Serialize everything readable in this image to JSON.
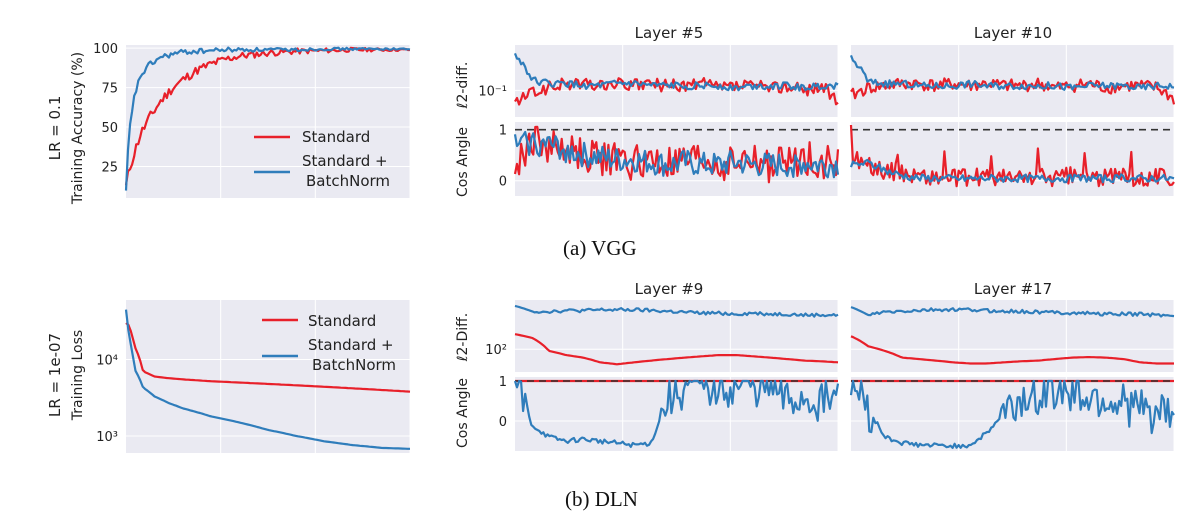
{
  "figure": {
    "caption_a": "(a) VGG",
    "caption_b": "(b) DLN"
  },
  "colors": {
    "standard": "#e8202a",
    "batchnorm": "#2f7dbb",
    "panel_bg": "#eaeaf2",
    "grid": "#ffffff",
    "reference_line": "#333333"
  },
  "chart_data": [
    {
      "id": "vgg-accuracy",
      "type": "line",
      "row_label": "LR = 0.1",
      "ylabel": "Training Accuracy (%)",
      "yscale": "linear",
      "ylim": [
        5,
        102
      ],
      "yticks": [
        25,
        50,
        75,
        100
      ],
      "ytick_labels": [
        "25",
        "50",
        "75",
        "100"
      ],
      "grid": true,
      "legend": [
        "Standard",
        "Standard +",
        "BatchNorm"
      ],
      "legend_position": "lower-right",
      "x": [
        0,
        0.01,
        0.03,
        0.05,
        0.08,
        0.12,
        0.16,
        0.2,
        0.25,
        0.3,
        0.35,
        0.4,
        0.5,
        0.6,
        0.7,
        0.8,
        0.9,
        1.0
      ],
      "series": [
        {
          "name": "Standard",
          "values": [
            12,
            22,
            34,
            45,
            55,
            66,
            74,
            80,
            86,
            90,
            93,
            95,
            97,
            98,
            98.5,
            99,
            99,
            99
          ]
        },
        {
          "name": "Standard + BatchNorm",
          "values": [
            8,
            45,
            70,
            82,
            89,
            94,
            96,
            97.5,
            98,
            98.5,
            99,
            99,
            99,
            99,
            99.5,
            99.5,
            99.5,
            99.5
          ]
        }
      ]
    },
    {
      "id": "vgg-l2-layer5",
      "type": "line",
      "title": "Layer #5",
      "ylabel": "ℓ2-diff.",
      "yscale": "log",
      "ytick_labels": [
        "10⁻¹"
      ],
      "grid": true,
      "series": [
        {
          "name": "Standard",
          "values": [
            0.06,
            0.09,
            0.11,
            0.13,
            0.13,
            0.12,
            0.13,
            0.12,
            0.13,
            0.12,
            0.12,
            0.13,
            0.11,
            0.12,
            0.12,
            0.11,
            0.12,
            0.1,
            0.12,
            0.06
          ]
        },
        {
          "name": "Standard + BatchNorm",
          "values": [
            0.4,
            0.15,
            0.13,
            0.13,
            0.12,
            0.12,
            0.13,
            0.13,
            0.12,
            0.12,
            0.12,
            0.12,
            0.12,
            0.11,
            0.12,
            0.12,
            0.12,
            0.11,
            0.12,
            0.12
          ]
        }
      ]
    },
    {
      "id": "vgg-l2-layer10",
      "type": "line",
      "title": "Layer #10",
      "yscale": "log",
      "grid": true,
      "series": [
        {
          "name": "Standard",
          "values": [
            0.08,
            0.11,
            0.12,
            0.13,
            0.13,
            0.12,
            0.13,
            0.12,
            0.13,
            0.12,
            0.12,
            0.13,
            0.11,
            0.12,
            0.13,
            0.11,
            0.12,
            0.12,
            0.11,
            0.07
          ]
        },
        {
          "name": "Standard + BatchNorm",
          "values": [
            0.35,
            0.14,
            0.13,
            0.13,
            0.12,
            0.12,
            0.12,
            0.13,
            0.12,
            0.12,
            0.12,
            0.12,
            0.12,
            0.11,
            0.12,
            0.12,
            0.12,
            0.11,
            0.12,
            0.12
          ]
        }
      ]
    },
    {
      "id": "vgg-cos-layer5",
      "type": "line",
      "ylabel": "Cos Angle",
      "ylim": [
        -0.3,
        1.15
      ],
      "yticks": [
        0,
        1
      ],
      "ytick_labels": [
        "0",
        "1"
      ],
      "reference_line": 1,
      "grid": true,
      "series": [
        {
          "name": "Standard",
          "values": [
            0.2,
            0.8,
            0.7,
            0.6,
            0.5,
            0.45,
            0.4,
            0.35,
            0.4,
            0.3,
            0.35,
            0.4,
            0.3,
            0.35,
            0.4,
            0.3,
            0.35,
            0.45,
            0.4,
            0.35
          ]
        },
        {
          "name": "Standard + BatchNorm",
          "values": [
            0.7,
            0.75,
            0.7,
            0.6,
            0.5,
            0.45,
            0.4,
            0.4,
            0.35,
            0.3,
            0.35,
            0.3,
            0.3,
            0.35,
            0.3,
            0.3,
            0.3,
            0.35,
            0.3,
            0.3
          ]
        }
      ]
    },
    {
      "id": "vgg-cos-layer10",
      "type": "line",
      "ylim": [
        -0.3,
        1.15
      ],
      "reference_line": 1,
      "grid": true,
      "series": [
        {
          "name": "Standard",
          "values": [
            0.5,
            0.3,
            0.2,
            0.15,
            0.1,
            0.05,
            0.05,
            0.05,
            0.08,
            0.05,
            0.05,
            0.08,
            0.05,
            0.1,
            0.05,
            0.05,
            0.1,
            0.05,
            0.1,
            0.05
          ]
        },
        {
          "name": "Standard + BatchNorm",
          "values": [
            0.3,
            0.35,
            0.2,
            0.1,
            0.05,
            0.05,
            0.04,
            0.04,
            0.05,
            0.04,
            0.05,
            0.04,
            0.05,
            0.04,
            0.05,
            0.04,
            0.05,
            0.04,
            0.05,
            0.04
          ]
        }
      ]
    },
    {
      "id": "dln-loss",
      "type": "line",
      "row_label": "LR = 1e-07",
      "ylabel": "Training Loss",
      "yscale": "log",
      "ylim": [
        600,
        60000
      ],
      "yticks": [
        1000,
        10000
      ],
      "ytick_labels": [
        "10³",
        "10⁴"
      ],
      "grid": true,
      "legend": [
        "Standard",
        "Standard +",
        "BatchNorm"
      ],
      "legend_position": "upper-right",
      "x": [
        0,
        0.01,
        0.03,
        0.06,
        0.1,
        0.15,
        0.2,
        0.3,
        0.4,
        0.5,
        0.6,
        0.7,
        0.8,
        0.9,
        1.0
      ],
      "series": [
        {
          "name": "Standard",
          "values": [
            30000,
            28000,
            15000,
            7000,
            6000,
            5700,
            5500,
            5200,
            5000,
            4800,
            4600,
            4400,
            4200,
            4000,
            3800
          ]
        },
        {
          "name": "Standard + BatchNorm",
          "values": [
            45000,
            20000,
            7500,
            4300,
            3300,
            2700,
            2300,
            1800,
            1500,
            1200,
            1000,
            850,
            760,
            700,
            680
          ]
        }
      ]
    },
    {
      "id": "dln-l2-layer9",
      "type": "line",
      "title": "Layer #9",
      "ylabel": "ℓ2-Diff.",
      "yscale": "log",
      "ytick_labels": [
        "10²"
      ],
      "grid": true,
      "series": [
        {
          "name": "Standard",
          "values": [
            250,
            200,
            90,
            70,
            60,
            45,
            40,
            45,
            50,
            55,
            60,
            65,
            70,
            70,
            65,
            60,
            55,
            50,
            48,
            45
          ]
        },
        {
          "name": "Standard + BatchNorm",
          "values": [
            1400,
            1000,
            1000,
            1050,
            1050,
            1100,
            1100,
            1100,
            1050,
            1000,
            950,
            900,
            900,
            850,
            900,
            850,
            850,
            800,
            800,
            800
          ]
        }
      ]
    },
    {
      "id": "dln-l2-layer17",
      "type": "line",
      "title": "Layer #17",
      "yscale": "log",
      "grid": true,
      "series": [
        {
          "name": "Standard",
          "values": [
            220,
            120,
            90,
            60,
            55,
            50,
            45,
            42,
            42,
            45,
            48,
            50,
            55,
            60,
            62,
            60,
            55,
            45,
            42,
            42
          ]
        },
        {
          "name": "Standard + BatchNorm",
          "values": [
            1300,
            800,
            950,
            1000,
            1050,
            1100,
            1100,
            1100,
            1050,
            1000,
            1000,
            950,
            950,
            900,
            900,
            850,
            850,
            850,
            800,
            800
          ]
        }
      ]
    },
    {
      "id": "dln-cos-layer9",
      "type": "line",
      "ylabel": "Cos Angle",
      "ylim": [
        -0.75,
        1.1
      ],
      "yticks": [
        0,
        1
      ],
      "ytick_labels": [
        "0",
        "1"
      ],
      "reference_line": 1,
      "grid": true,
      "series": [
        {
          "name": "Standard",
          "values": [
            1,
            1,
            1,
            1,
            1,
            1,
            1,
            1,
            1,
            1,
            1,
            1,
            1,
            1,
            1,
            1,
            1,
            1,
            1,
            1
          ]
        },
        {
          "name": "Standard + BatchNorm",
          "values": [
            1,
            -0.1,
            -0.4,
            -0.5,
            -0.45,
            -0.5,
            -0.55,
            -0.6,
            -0.55,
            0.6,
            0.85,
            0.9,
            0.85,
            0.9,
            0.9,
            0.85,
            0.5,
            0.6,
            0.5,
            0.6
          ]
        }
      ]
    },
    {
      "id": "dln-cos-layer17",
      "type": "line",
      "ylim": [
        -0.75,
        1.1
      ],
      "reference_line": 1,
      "grid": true,
      "series": [
        {
          "name": "Standard",
          "values": [
            1,
            1,
            1,
            1,
            1,
            1,
            1,
            1,
            1,
            1,
            1,
            1,
            1,
            1,
            1,
            1,
            1,
            1,
            1,
            1
          ]
        },
        {
          "name": "Standard + BatchNorm",
          "values": [
            1,
            0.3,
            -0.4,
            -0.55,
            -0.6,
            -0.62,
            -0.62,
            -0.6,
            -0.3,
            0.2,
            0.5,
            0.7,
            0.8,
            0.7,
            0.6,
            0.55,
            0.4,
            0.3,
            0.2,
            0.1
          ]
        }
      ]
    }
  ]
}
